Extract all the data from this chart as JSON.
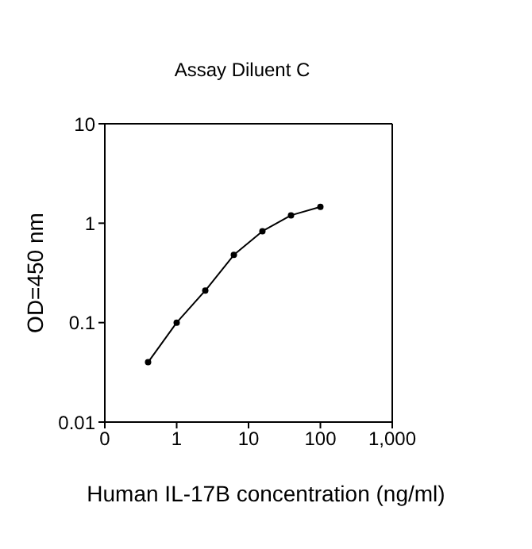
{
  "chart_data": {
    "type": "line",
    "title": "Assay Diluent C",
    "xlabel": "Human IL-17B concentration (ng/ml)",
    "ylabel": "OD=450 nm",
    "x": [
      0.4,
      1,
      2.5,
      6.25,
      15.6,
      39,
      100
    ],
    "series": [
      {
        "color": "#000000",
        "values": [
          0.04,
          0.1,
          0.21,
          0.48,
          0.83,
          1.2,
          1.46
        ]
      }
    ],
    "log": "xy",
    "xlim": [
      0.1,
      1000
    ],
    "xticks": [
      {
        "value": 0.1,
        "label": "0"
      },
      1,
      10,
      100,
      {
        "value": 1000,
        "label": "1,000"
      }
    ],
    "ylim": [
      0.01,
      10
    ],
    "yticks": [
      0.01,
      0.1,
      1,
      10
    ],
    "grid": false,
    "legend": false,
    "marker": "circle",
    "line_style": "solid"
  }
}
